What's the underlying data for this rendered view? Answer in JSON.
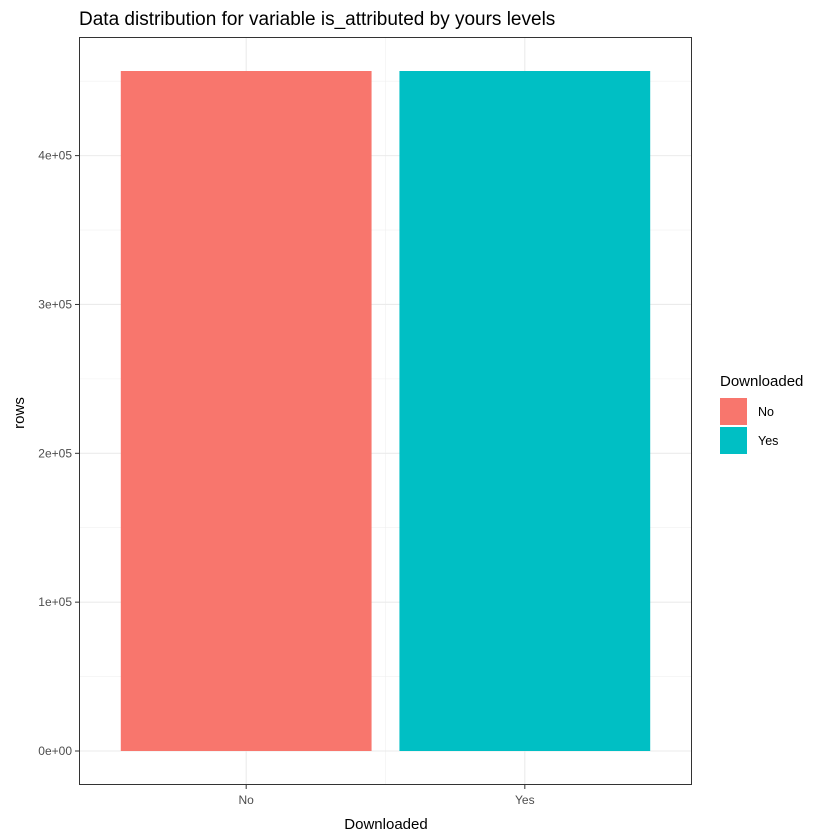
{
  "chart_data": {
    "type": "bar",
    "title": "Data distribution for variable is_attributed by yours levels",
    "xlabel": "Downloaded",
    "ylabel": "rows",
    "categories": [
      "No",
      "Yes"
    ],
    "values": [
      456846,
      456846
    ],
    "colors": [
      "#F8766D",
      "#00BFC4"
    ],
    "ylim": [
      -22842,
      479688
    ],
    "yticks": [
      {
        "value": 0,
        "label": "0e+00"
      },
      {
        "value": 100000,
        "label": "1e+05"
      },
      {
        "value": 200000,
        "label": "2e+05"
      },
      {
        "value": 300000,
        "label": "3e+05"
      },
      {
        "value": 400000,
        "label": "4e+05"
      }
    ],
    "grid": true,
    "legend": {
      "title": "Downloaded",
      "position": "right",
      "items": [
        {
          "label": "No",
          "color": "#F8766D"
        },
        {
          "label": "Yes",
          "color": "#00BFC4"
        }
      ]
    }
  }
}
